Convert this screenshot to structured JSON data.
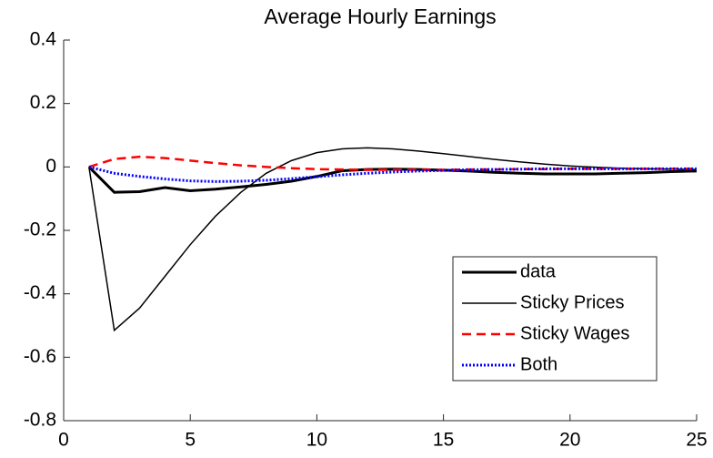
{
  "chart_data": {
    "type": "line",
    "title": "Average Hourly Earnings",
    "x": [
      1,
      2,
      3,
      4,
      5,
      6,
      7,
      8,
      9,
      10,
      11,
      12,
      13,
      14,
      15,
      16,
      17,
      18,
      19,
      20,
      21,
      22,
      23,
      24,
      25
    ],
    "series": [
      {
        "name": "data",
        "color": "#000000",
        "line_width": 3,
        "style": "solid",
        "values": [
          0,
          -0.08,
          -0.078,
          -0.065,
          -0.075,
          -0.07,
          -0.063,
          -0.055,
          -0.045,
          -0.03,
          -0.012,
          -0.008,
          -0.007,
          -0.008,
          -0.01,
          -0.013,
          -0.017,
          -0.02,
          -0.022,
          -0.022,
          -0.022,
          -0.02,
          -0.018,
          -0.015,
          -0.013
        ]
      },
      {
        "name": "Sticky Prices",
        "color": "#000000",
        "line_width": 1.5,
        "style": "solid",
        "values": [
          0,
          -0.515,
          -0.445,
          -0.345,
          -0.245,
          -0.155,
          -0.08,
          -0.02,
          0.02,
          0.045,
          0.057,
          0.06,
          0.057,
          0.05,
          0.042,
          0.033,
          0.024,
          0.016,
          0.009,
          0.003,
          -0.001,
          -0.004,
          -0.006,
          -0.007,
          -0.008
        ]
      },
      {
        "name": "Sticky Wages",
        "color": "#ff0000",
        "line_width": 2.5,
        "style": "dashed",
        "values": [
          0,
          0.025,
          0.032,
          0.028,
          0.02,
          0.012,
          0.005,
          0,
          -0.004,
          -0.007,
          -0.008,
          -0.009,
          -0.009,
          -0.009,
          -0.009,
          -0.008,
          -0.008,
          -0.007,
          -0.007,
          -0.006,
          -0.006,
          -0.006,
          -0.006,
          -0.006,
          -0.006
        ]
      },
      {
        "name": "Both",
        "color": "#0000ff",
        "line_width": 3,
        "style": "dotted",
        "values": [
          0,
          -0.02,
          -0.03,
          -0.038,
          -0.044,
          -0.046,
          -0.045,
          -0.042,
          -0.037,
          -0.031,
          -0.025,
          -0.02,
          -0.016,
          -0.013,
          -0.011,
          -0.009,
          -0.008,
          -0.007,
          -0.006,
          -0.006,
          -0.006,
          -0.006,
          -0.006,
          -0.006,
          -0.006
        ]
      }
    ],
    "xlim": [
      0,
      25
    ],
    "xticks": [
      0,
      5,
      10,
      15,
      20,
      25
    ],
    "ylim": [
      -0.8,
      0.4
    ],
    "yticks": [
      -0.8,
      -0.6,
      -0.4,
      -0.2,
      0,
      0.2,
      0.4
    ],
    "legend": "southeast"
  }
}
